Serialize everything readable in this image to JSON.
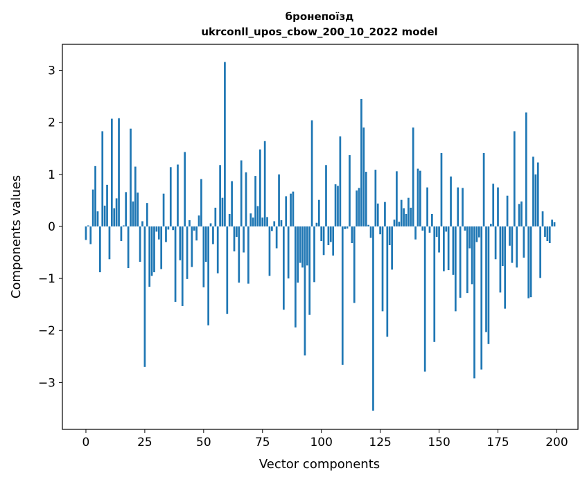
{
  "chart_data": {
    "type": "bar",
    "title": "бронепоїзд",
    "subtitle": "ukrconll_upos_cbow_200_10_2022 model",
    "xlabel": "Vector components",
    "ylabel": "Components values",
    "xlim": [
      -10,
      209
    ],
    "ylim": [
      -3.9,
      3.5
    ],
    "xticks": [
      0,
      25,
      50,
      75,
      100,
      125,
      150,
      175,
      200
    ],
    "xtick_labels": [
      "0",
      "25",
      "50",
      "75",
      "100",
      "125",
      "150",
      "175",
      "200"
    ],
    "yticks": [
      3,
      2,
      1,
      0,
      -1,
      -2,
      -3
    ],
    "ytick_labels": [
      "3",
      "2",
      "1",
      "0",
      "−1",
      "−2",
      "−3"
    ],
    "grid": false,
    "bar_color": "#1f77b4",
    "values": [
      -0.26,
      0.02,
      -0.34,
      0.71,
      1.16,
      0.29,
      -0.88,
      1.83,
      0.4,
      0.8,
      -0.63,
      2.07,
      0.35,
      0.54,
      2.08,
      -0.28,
      0.02,
      0.66,
      -0.8,
      1.88,
      0.48,
      1.15,
      0.65,
      -0.68,
      0.1,
      -2.7,
      0.45,
      -1.16,
      -0.95,
      -0.88,
      -0.1,
      -0.25,
      -0.82,
      0.63,
      -0.3,
      -0.06,
      1.14,
      -0.07,
      -1.45,
      1.19,
      -0.65,
      -1.53,
      1.43,
      -1.01,
      0.12,
      -0.78,
      -0.08,
      -0.27,
      0.21,
      0.91,
      -1.17,
      -0.68,
      -1.9,
      0.06,
      -0.34,
      0.36,
      -0.9,
      1.18,
      0.55,
      3.16,
      -1.68,
      0.24,
      0.87,
      -0.48,
      -0.2,
      -1.08,
      1.27,
      -0.5,
      1.04,
      -1.1,
      0.25,
      0.17,
      0.97,
      0.39,
      1.48,
      0.17,
      1.64,
      0.18,
      -0.95,
      -0.09,
      0.1,
      -0.42,
      1.0,
      0.12,
      -1.6,
      0.58,
      -1.0,
      0.63,
      0.67,
      -1.94,
      -1.08,
      -0.7,
      -0.79,
      -2.48,
      -0.75,
      -1.7,
      2.04,
      -1.07,
      0.07,
      0.51,
      -0.28,
      -0.55,
      1.18,
      -0.36,
      -0.3,
      -0.56,
      0.81,
      0.78,
      1.73,
      -2.66,
      -0.05,
      -0.04,
      1.37,
      -0.32,
      -1.47,
      0.69,
      0.74,
      2.45,
      1.9,
      1.05,
      0.03,
      -0.22,
      -3.54,
      1.09,
      0.44,
      -0.15,
      -1.63,
      0.47,
      -2.12,
      -0.36,
      -0.83,
      0.13,
      1.06,
      0.09,
      0.51,
      0.35,
      0.24,
      0.55,
      0.36,
      1.9,
      -0.25,
      1.11,
      1.07,
      -0.08,
      -2.79,
      0.75,
      -0.12,
      0.24,
      -2.22,
      -0.2,
      -0.5,
      1.41,
      -0.86,
      -0.1,
      -0.84,
      0.96,
      -0.93,
      -1.63,
      0.75,
      -1.37,
      0.74,
      -0.08,
      -1.28,
      -0.42,
      -1.11,
      -2.92,
      -0.3,
      -0.21,
      -2.75,
      1.41,
      -2.03,
      -2.26,
      0.05,
      0.82,
      -0.63,
      0.75,
      -1.27,
      -0.76,
      -1.58,
      0.59,
      -0.37,
      -0.7,
      1.83,
      -0.79,
      0.43,
      0.48,
      -0.6,
      2.19,
      -1.38,
      -1.36,
      1.34,
      1.0,
      1.23,
      -0.99,
      0.29,
      -0.2,
      -0.28,
      -0.32,
      0.13,
      0.08
    ]
  }
}
